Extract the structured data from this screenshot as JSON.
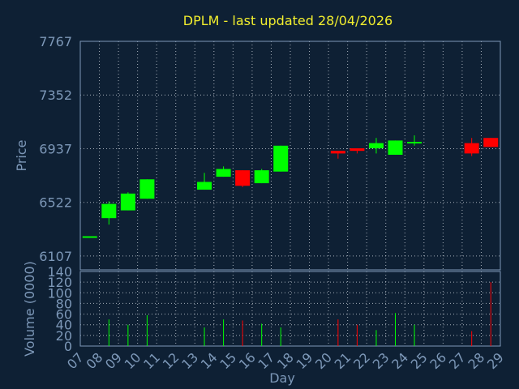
{
  "chart_data": {
    "type": "candlestick",
    "title": "DPLM - last updated 28/04/2026",
    "xlabel": "Day",
    "price_panel": {
      "ylabel": "Price",
      "ylim": [
        6000,
        7767
      ],
      "yticks": [
        6107,
        6522,
        6937,
        7352,
        7767
      ]
    },
    "volume_panel": {
      "ylabel": "Volume (0000)",
      "ylim": [
        0,
        140
      ],
      "yticks": [
        0,
        20,
        40,
        60,
        80,
        100,
        120,
        140
      ]
    },
    "x_ticks": [
      "07",
      "08",
      "09",
      "10",
      "11",
      "12",
      "13",
      "14",
      "15",
      "16",
      "17",
      "18",
      "19",
      "20",
      "21",
      "22",
      "23",
      "24",
      "25",
      "26",
      "27",
      "28",
      "29"
    ],
    "up_color": "#00ff00",
    "down_color": "#ff0000",
    "candles": [
      {
        "day": "07",
        "open": 6260,
        "high": 6260,
        "low": 6260,
        "close": 6260,
        "volume": 0
      },
      {
        "day": "08",
        "open": 6400,
        "high": 6530,
        "low": 6350,
        "close": 6510,
        "volume": 50
      },
      {
        "day": "09",
        "open": 6460,
        "high": 6600,
        "low": 6460,
        "close": 6590,
        "volume": 40
      },
      {
        "day": "10",
        "open": 6550,
        "high": 6700,
        "low": 6550,
        "close": 6700,
        "volume": 58
      },
      {
        "day": "13",
        "open": 6620,
        "high": 6750,
        "low": 6620,
        "close": 6680,
        "volume": 35
      },
      {
        "day": "14",
        "open": 6720,
        "high": 6800,
        "low": 6720,
        "close": 6780,
        "volume": 50
      },
      {
        "day": "15",
        "open": 6770,
        "high": 6770,
        "low": 6640,
        "close": 6650,
        "volume": 48
      },
      {
        "day": "16",
        "open": 6670,
        "high": 6780,
        "low": 6670,
        "close": 6770,
        "volume": 42
      },
      {
        "day": "17",
        "open": 6760,
        "high": 6960,
        "low": 6760,
        "close": 6960,
        "volume": 35
      },
      {
        "day": "20",
        "open": 6920,
        "high": 6920,
        "low": 6860,
        "close": 6900,
        "volume": 50
      },
      {
        "day": "21",
        "open": 6940,
        "high": 6940,
        "low": 6900,
        "close": 6920,
        "volume": 40
      },
      {
        "day": "22",
        "open": 6940,
        "high": 7020,
        "low": 6900,
        "close": 6980,
        "volume": 30
      },
      {
        "day": "23",
        "open": 6890,
        "high": 7000,
        "low": 6890,
        "close": 7000,
        "volume": 62
      },
      {
        "day": "24",
        "open": 6980,
        "high": 7040,
        "low": 6960,
        "close": 6990,
        "volume": 40
      },
      {
        "day": "27",
        "open": 6980,
        "high": 7020,
        "low": 6880,
        "close": 6900,
        "volume": 28
      },
      {
        "day": "28",
        "open": 7020,
        "high": 7020,
        "low": 6950,
        "close": 6950,
        "volume": 120
      }
    ]
  }
}
